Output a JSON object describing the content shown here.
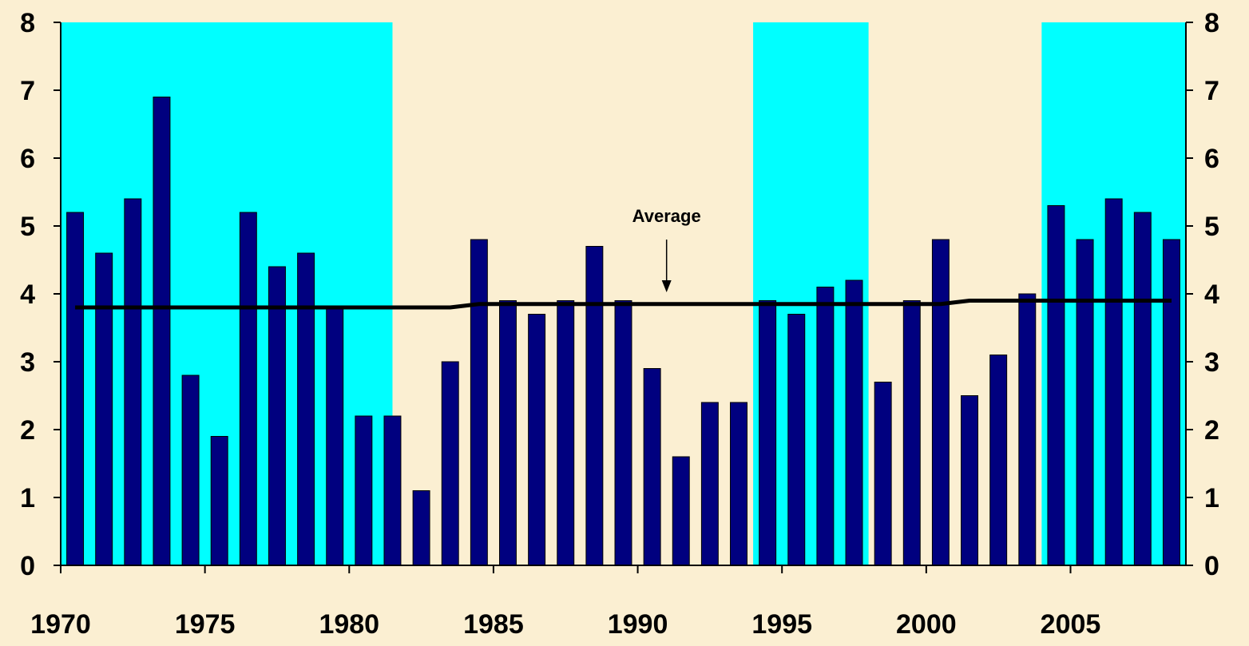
{
  "chart_data": {
    "type": "bar",
    "x": [
      1970,
      1971,
      1972,
      1973,
      1974,
      1975,
      1976,
      1977,
      1978,
      1979,
      1980,
      1981,
      1982,
      1983,
      1984,
      1985,
      1986,
      1987,
      1988,
      1989,
      1990,
      1991,
      1992,
      1993,
      1994,
      1995,
      1996,
      1997,
      1998,
      1999,
      2000,
      2001,
      2002,
      2003,
      2004,
      2005,
      2006,
      2007,
      2008
    ],
    "series": [
      {
        "type": "bar",
        "values": [
          5.2,
          4.6,
          5.4,
          6.9,
          2.8,
          1.9,
          5.2,
          4.4,
          4.6,
          3.8,
          2.2,
          2.2,
          1.1,
          3.0,
          4.8,
          3.9,
          3.7,
          3.9,
          4.7,
          3.9,
          2.9,
          1.6,
          2.4,
          2.4,
          3.9,
          3.7,
          4.1,
          4.2,
          2.7,
          3.9,
          4.8,
          2.5,
          3.1,
          4.0,
          5.3,
          4.8,
          5.4,
          5.2,
          4.8
        ],
        "color": "#00007f"
      },
      {
        "type": "line",
        "values": [
          3.8,
          3.8,
          3.8,
          3.8,
          3.8,
          3.8,
          3.8,
          3.8,
          3.8,
          3.8,
          3.8,
          3.8,
          3.8,
          3.8,
          3.85,
          3.85,
          3.85,
          3.85,
          3.85,
          3.85,
          3.85,
          3.85,
          3.85,
          3.85,
          3.85,
          3.85,
          3.85,
          3.85,
          3.85,
          3.85,
          3.85,
          3.9,
          3.9,
          3.9,
          3.9,
          3.9,
          3.9,
          3.9,
          3.9
        ],
        "color": "#000000"
      }
    ],
    "shaded_periods": [
      [
        1970,
        1981
      ],
      [
        1994,
        1997
      ],
      [
        2004,
        2008
      ]
    ],
    "shade_color": "#00ffff",
    "x_ticks": [
      "1970",
      "1975",
      "1980",
      "1985",
      "1990",
      "1995",
      "2000",
      "2005"
    ],
    "y_ticks": [
      "0",
      "1",
      "2",
      "3",
      "4",
      "5",
      "6",
      "7",
      "8"
    ],
    "ylim": [
      0,
      8
    ],
    "xlim": [
      1969.5,
      2008.5
    ],
    "axes": "left-and-right",
    "grid": false,
    "annotation": {
      "text": "Average",
      "points_to_year": 1991
    },
    "title": "",
    "xlabel": "",
    "ylabel": ""
  },
  "colors": {
    "background": "#fbefd2",
    "axis": "#000000"
  }
}
